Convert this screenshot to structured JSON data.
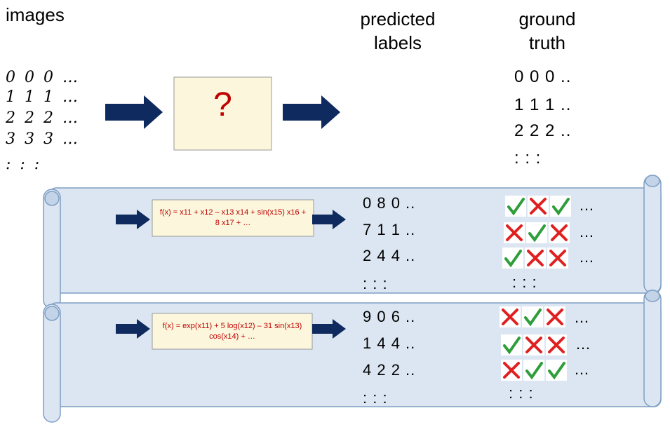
{
  "header": {
    "images": "images",
    "predicted": "predicted labels",
    "ground_truth": "ground truth"
  },
  "images": {
    "rows": [
      "0 0 0 …",
      "1 1 1 …",
      "2 2 2 …",
      "3 3 3 …",
      ": : :"
    ]
  },
  "model": {
    "label": "?"
  },
  "ground_truth": {
    "rows": [
      "0 0 0 ..",
      "1 1 1 ..",
      "2 2 2 ..",
      ": : :"
    ]
  },
  "scrolls": [
    {
      "formula": "f(x) = x11 + x12 – x13 x14 + sin(x15) x16 + 8 x17 + …",
      "predicted_rows": [
        "0 8 0 ..",
        "7 1 1 ..",
        "2 4 4 ..",
        ": : :"
      ],
      "result_rows": [
        "…",
        "…",
        "…",
        ": : :"
      ]
    },
    {
      "formula": "f(x) = exp(x11) + 5 log(x12) – 31 sin(x13) cos(x14) + …",
      "predicted_rows": [
        "9 0 6 ..",
        "1 4 4 ..",
        "4 2 2 ..",
        ": : :"
      ],
      "result_rows": [
        "…",
        "…",
        "…",
        ": : :"
      ]
    }
  ]
}
